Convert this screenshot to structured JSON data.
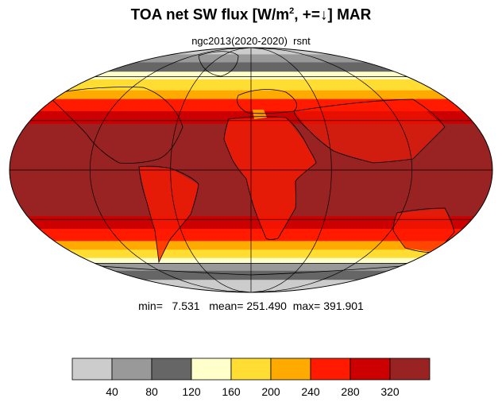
{
  "header": {
    "title_main": "TOA net SW flux [W/m",
    "title_sup": "2",
    "title_tail": ", +=↓]  MAR",
    "subtitle": "ngc2013(2020-2020)  rsnt"
  },
  "stats": {
    "text": "min=   7.531   mean= 251.490  max= 391.901"
  },
  "colorbar": {
    "colors": [
      "#cccccc",
      "#999999",
      "#666666",
      "#ffffcc",
      "#ffdd33",
      "#ffaa00",
      "#ff1a00",
      "#cc0000",
      "#992222"
    ],
    "labels": [
      "40",
      "80",
      "120",
      "160",
      "200",
      "240",
      "280",
      "320"
    ]
  },
  "map": {
    "projection": "Mollweide",
    "bands": [
      {
        "lat_max": 90,
        "lat_min": 80,
        "color": "#cccccc"
      },
      {
        "lat_max": 80,
        "lat_min": 72,
        "color": "#999999"
      },
      {
        "lat_max": 72,
        "lat_min": 64,
        "color": "#666666"
      },
      {
        "lat_max": 64,
        "lat_min": 58,
        "color": "#ffffcc"
      },
      {
        "lat_max": 58,
        "lat_min": 50,
        "color": "#ffdd33"
      },
      {
        "lat_max": 50,
        "lat_min": 44,
        "color": "#ffaa00"
      },
      {
        "lat_max": 44,
        "lat_min": 36,
        "color": "#ff1a00"
      },
      {
        "lat_max": 36,
        "lat_min": 28,
        "color": "#cc0000"
      },
      {
        "lat_max": 28,
        "lat_min": -28,
        "color": "#992222"
      },
      {
        "lat_max": -28,
        "lat_min": -36,
        "color": "#cc0000"
      },
      {
        "lat_max": -36,
        "lat_min": -44,
        "color": "#ff1a00"
      },
      {
        "lat_max": -44,
        "lat_min": -50,
        "color": "#ffaa00"
      },
      {
        "lat_max": -50,
        "lat_min": -56,
        "color": "#ffdd33"
      },
      {
        "lat_max": -56,
        "lat_min": -60,
        "color": "#ffffcc"
      },
      {
        "lat_max": -60,
        "lat_min": -66,
        "color": "#999999"
      },
      {
        "lat_max": -66,
        "lat_min": -74,
        "color": "#666666"
      },
      {
        "lat_max": -74,
        "lat_min": -90,
        "color": "#cccccc"
      }
    ],
    "parallels": [
      -60,
      -30,
      0,
      30,
      60
    ],
    "meridians": [
      -120,
      -60,
      0,
      60,
      120
    ]
  }
}
